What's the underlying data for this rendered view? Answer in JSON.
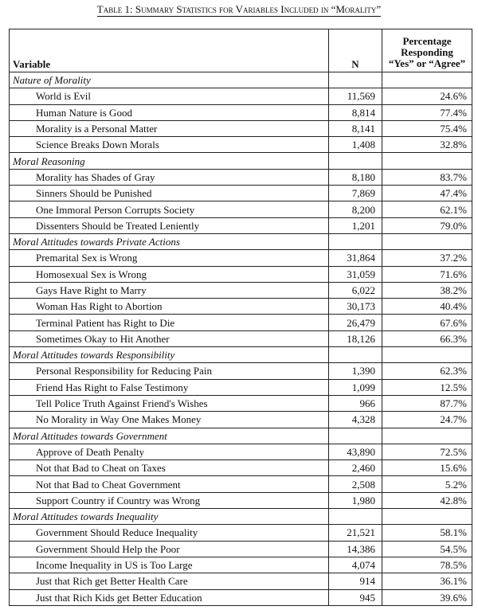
{
  "title": "Table 1: Summary Statistics for Variables Included in “Morality”",
  "headers": {
    "variable": "Variable",
    "n": "N",
    "pct_line1": "Percentage",
    "pct_line2": "Responding",
    "pct_line3": "“Yes” or “Agree”"
  },
  "sections": [
    {
      "name": "Nature of Morality",
      "rows": [
        {
          "variable": "World is Evil",
          "n": "11,569",
          "pct": "24.6%"
        },
        {
          "variable": "Human Nature is Good",
          "n": "8,814",
          "pct": "77.4%"
        },
        {
          "variable": "Morality is a Personal Matter",
          "n": "8,141",
          "pct": "75.4%"
        },
        {
          "variable": "Science Breaks Down Morals",
          "n": "1,408",
          "pct": "32.8%"
        }
      ]
    },
    {
      "name": "Moral Reasoning",
      "rows": [
        {
          "variable": "Morality has Shades of Gray",
          "n": "8,180",
          "pct": "83.7%"
        },
        {
          "variable": "Sinners Should be Punished",
          "n": "7,869",
          "pct": "47.4%"
        },
        {
          "variable": "One Immoral Person Corrupts Society",
          "n": "8,200",
          "pct": "62.1%"
        },
        {
          "variable": "Dissenters Should be Treated Leniently",
          "n": "1,201",
          "pct": "79.0%"
        }
      ]
    },
    {
      "name": "Moral Attitudes towards Private Actions",
      "rows": [
        {
          "variable": "Premarital Sex is Wrong",
          "n": "31,864",
          "pct": "37.2%"
        },
        {
          "variable": "Homosexual Sex is Wrong",
          "n": "31,059",
          "pct": "71.6%"
        },
        {
          "variable": "Gays Have Right to Marry",
          "n": "6,022",
          "pct": "38.2%"
        },
        {
          "variable": "Woman Has Right to Abortion",
          "n": "30,173",
          "pct": "40.4%"
        },
        {
          "variable": "Terminal Patient has Right to Die",
          "n": "26,479",
          "pct": "67.6%"
        },
        {
          "variable": "Sometimes Okay to Hit Another",
          "n": "18,126",
          "pct": "66.3%"
        }
      ]
    },
    {
      "name": "Moral Attitudes towards Responsibility",
      "rows": [
        {
          "variable": "Personal Responsibility for Reducing Pain",
          "n": "1,390",
          "pct": "62.3%"
        },
        {
          "variable": "Friend Has Right to False Testimony",
          "n": "1,099",
          "pct": "12.5%"
        },
        {
          "variable": "Tell Police Truth Against Friend's Wishes",
          "n": "966",
          "pct": "87.7%"
        },
        {
          "variable": "No Morality in Way One Makes Money",
          "n": "4,328",
          "pct": "24.7%"
        }
      ]
    },
    {
      "name": "Moral Attitudes towards Government",
      "rows": [
        {
          "variable": "Approve of Death Penalty",
          "n": "43,890",
          "pct": "72.5%"
        },
        {
          "variable": "Not that Bad to Cheat on Taxes",
          "n": "2,460",
          "pct": "15.6%"
        },
        {
          "variable": "Not that Bad to Cheat Government",
          "n": "2,508",
          "pct": "5.2%"
        },
        {
          "variable": "Support Country if Country was Wrong",
          "n": "1,980",
          "pct": "42.8%"
        }
      ]
    },
    {
      "name": "Moral Attitudes towards Inequality",
      "rows": [
        {
          "variable": "Government Should Reduce Inequality",
          "n": "21,521",
          "pct": "58.1%"
        },
        {
          "variable": "Government Should Help the Poor",
          "n": "14,386",
          "pct": "54.5%"
        },
        {
          "variable": "Income Inequality in US is Too Large",
          "n": "4,074",
          "pct": "78.5%"
        },
        {
          "variable": "Just that Rich get Better Health Care",
          "n": "914",
          "pct": "36.1%"
        },
        {
          "variable": "Just that Rich Kids get Better Education",
          "n": "945",
          "pct": "39.6%"
        }
      ]
    }
  ]
}
